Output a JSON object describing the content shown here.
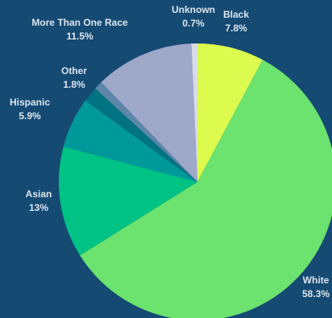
{
  "chart_data": {
    "type": "pie",
    "start_angle_deg": 0,
    "direction": "clockwise",
    "legend": "none",
    "slices": [
      {
        "name": "Black",
        "value": 7.8,
        "value_label": "7.8%",
        "color": "#dcfb4e"
      },
      {
        "name": "White",
        "value": 58.3,
        "value_label": "58.3%",
        "color": "#6ce26f"
      },
      {
        "name": "Asian",
        "value": 13,
        "value_label": "13%",
        "color": "#00c285"
      },
      {
        "name": "Hispanic",
        "value": 5.9,
        "value_label": "5.9%",
        "color": "#00999a"
      },
      {
        "name": "Other",
        "value": 1.8,
        "value_label": "1.8%",
        "color": "#007383"
      },
      {
        "name": "",
        "value": 1.0,
        "value_label": "",
        "color": "#5c86a8"
      },
      {
        "name": "More Than One Race",
        "value": 11.5,
        "value_label": "11.5%",
        "color": "#9ea8c9"
      },
      {
        "name": "Unknown",
        "value": 0.7,
        "value_label": "0.7%",
        "color": "#d9dbe5"
      }
    ]
  },
  "colors": {
    "background": "#154a73",
    "label_text": "#dce6ef"
  }
}
